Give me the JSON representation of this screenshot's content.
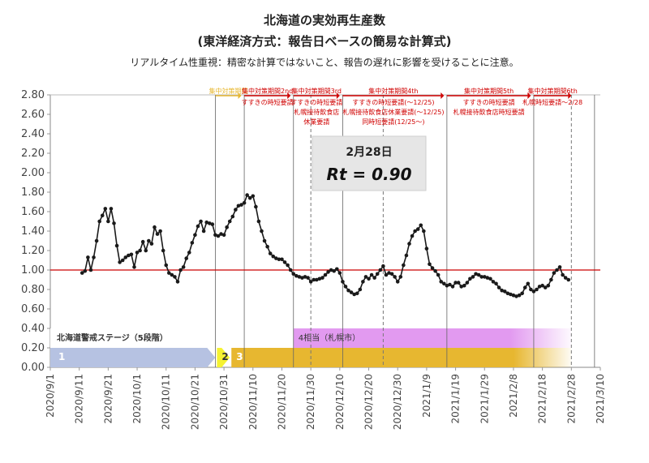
{
  "header": {
    "title": "北海道の実効再生産数",
    "subtitle": "(東洋経済方式：報告日ベースの簡易な計算式)",
    "note": "リアルタイム性重視：精密な計算ではないこと、報告の遅れに影響を受けることに注意。"
  },
  "rt_box": {
    "date": "2月28日",
    "value_text": "Rt = 0.90"
  },
  "colors": {
    "line": "#1a1a1a",
    "ref": "#cc0000",
    "stage1": "#b6c2e2",
    "stage2": "#f5f232",
    "stage3": "#e7b730",
    "stage4": "#e29af0",
    "period": "#d00000"
  },
  "stage_bar": {
    "label": "北海道警戒ステージ（5段階）",
    "stage1": "1",
    "stage2": "2",
    "stage3": "3",
    "stage4_label": "4相当（札幌市）"
  },
  "periods": [
    {
      "title": "集中対策期間",
      "start": "2020-10-28",
      "end": "2020-11-06",
      "notes": [],
      "color": "#e7b730"
    },
    {
      "title": "集中対策期間2nd",
      "start": "2020-11-07",
      "end": "2020-11-23",
      "notes": [
        "すすきの時短要請"
      ]
    },
    {
      "title": "集中対策期間3rd",
      "start": "2020-11-24",
      "end": "2020-12-10",
      "notes": [
        "すすきの時短要請",
        "札幌接待飲食店",
        "休業要請"
      ]
    },
    {
      "title": "集中対策期間4th",
      "start": "2020-12-11",
      "end": "2021-01-15",
      "notes": [
        "すすきの時短要請(〜12/25)",
        "札幌接待飲食店休業要請(〜12/25)",
        "同時短要請(12/25〜)"
      ]
    },
    {
      "title": "集中対策期間5th",
      "start": "2021-01-16",
      "end": "2021-02-14",
      "notes": [
        "すすきの時短要請",
        "札幌接待飲食店時短要請"
      ]
    },
    {
      "title": "集中対策期間6th",
      "start": "2021-02-15",
      "end": "2021-02-28",
      "notes": [
        "札幌時短要請〜2/28"
      ]
    }
  ],
  "chart_data": {
    "type": "line",
    "title": "北海道の実効再生産数",
    "xlabel": "",
    "ylabel": "",
    "ylim": [
      0,
      2.8
    ],
    "yticks": [
      "0.00",
      "0.20",
      "0.40",
      "0.60",
      "0.80",
      "1.00",
      "1.20",
      "1.40",
      "1.60",
      "1.80",
      "2.00",
      "2.20",
      "2.40",
      "2.60",
      "2.80"
    ],
    "xticks": [
      "2020/9/1",
      "2020/9/11",
      "2020/9/21",
      "2020/10/1",
      "2020/10/11",
      "2020/10/21",
      "2020/10/31",
      "2020/11/10",
      "2020/11/20",
      "2020/11/30",
      "2020/12/10",
      "2020/12/20",
      "2020/12/30",
      "2021/1/9",
      "2021/1/19",
      "2021/1/29",
      "2021/2/8",
      "2021/2/18",
      "2021/2/28",
      "2021/3/10"
    ],
    "xlim": [
      "2020-09-01",
      "2021-03-10"
    ],
    "reference_line": 1.0,
    "series": [
      {
        "values": [
          [
            "2020-09-12",
            0.97
          ],
          [
            "2020-09-13",
            0.99
          ],
          [
            "2020-09-14",
            1.13
          ],
          [
            "2020-09-15",
            1.0
          ],
          [
            "2020-09-16",
            1.13
          ],
          [
            "2020-09-17",
            1.3
          ],
          [
            "2020-09-18",
            1.5
          ],
          [
            "2020-09-19",
            1.56
          ],
          [
            "2020-09-20",
            1.63
          ],
          [
            "2020-09-21",
            1.5
          ],
          [
            "2020-09-22",
            1.63
          ],
          [
            "2020-09-23",
            1.48
          ],
          [
            "2020-09-24",
            1.25
          ],
          [
            "2020-09-25",
            1.08
          ],
          [
            "2020-09-26",
            1.1
          ],
          [
            "2020-09-27",
            1.13
          ],
          [
            "2020-09-28",
            1.15
          ],
          [
            "2020-09-29",
            1.16
          ],
          [
            "2020-09-30",
            1.03
          ],
          [
            "2020-10-01",
            1.18
          ],
          [
            "2020-10-02",
            1.2
          ],
          [
            "2020-10-03",
            1.29
          ],
          [
            "2020-10-04",
            1.2
          ],
          [
            "2020-10-05",
            1.3
          ],
          [
            "2020-10-06",
            1.27
          ],
          [
            "2020-10-07",
            1.44
          ],
          [
            "2020-10-08",
            1.37
          ],
          [
            "2020-10-09",
            1.4
          ],
          [
            "2020-10-10",
            1.2
          ],
          [
            "2020-10-11",
            1.05
          ],
          [
            "2020-10-12",
            0.97
          ],
          [
            "2020-10-13",
            0.95
          ],
          [
            "2020-10-14",
            0.93
          ],
          [
            "2020-10-15",
            0.88
          ],
          [
            "2020-10-16",
            1.0
          ],
          [
            "2020-10-17",
            1.03
          ],
          [
            "2020-10-18",
            1.12
          ],
          [
            "2020-10-19",
            1.18
          ],
          [
            "2020-10-20",
            1.28
          ],
          [
            "2020-10-21",
            1.36
          ],
          [
            "2020-10-22",
            1.45
          ],
          [
            "2020-10-23",
            1.5
          ],
          [
            "2020-10-24",
            1.4
          ],
          [
            "2020-10-25",
            1.49
          ],
          [
            "2020-10-26",
            1.48
          ],
          [
            "2020-10-27",
            1.47
          ],
          [
            "2020-10-28",
            1.36
          ],
          [
            "2020-10-29",
            1.35
          ],
          [
            "2020-10-30",
            1.37
          ],
          [
            "2020-10-31",
            1.36
          ],
          [
            "2020-11-01",
            1.44
          ],
          [
            "2020-11-02",
            1.5
          ],
          [
            "2020-11-03",
            1.55
          ],
          [
            "2020-11-04",
            1.62
          ],
          [
            "2020-11-05",
            1.66
          ],
          [
            "2020-11-06",
            1.67
          ],
          [
            "2020-11-07",
            1.69
          ],
          [
            "2020-11-08",
            1.77
          ],
          [
            "2020-11-09",
            1.74
          ],
          [
            "2020-11-10",
            1.76
          ],
          [
            "2020-11-11",
            1.65
          ],
          [
            "2020-11-12",
            1.5
          ],
          [
            "2020-11-13",
            1.4
          ],
          [
            "2020-11-14",
            1.3
          ],
          [
            "2020-11-15",
            1.24
          ],
          [
            "2020-11-16",
            1.17
          ],
          [
            "2020-11-17",
            1.14
          ],
          [
            "2020-11-18",
            1.12
          ],
          [
            "2020-11-19",
            1.11
          ],
          [
            "2020-11-20",
            1.11
          ],
          [
            "2020-11-21",
            1.08
          ],
          [
            "2020-11-22",
            1.05
          ],
          [
            "2020-11-23",
            1.0
          ],
          [
            "2020-11-24",
            0.96
          ],
          [
            "2020-11-25",
            0.94
          ],
          [
            "2020-11-26",
            0.93
          ],
          [
            "2020-11-27",
            0.92
          ],
          [
            "2020-11-28",
            0.93
          ],
          [
            "2020-11-29",
            0.92
          ],
          [
            "2020-11-30",
            0.88
          ],
          [
            "2020-12-01",
            0.9
          ],
          [
            "2020-12-02",
            0.9
          ],
          [
            "2020-12-03",
            0.91
          ],
          [
            "2020-12-04",
            0.92
          ],
          [
            "2020-12-05",
            0.95
          ],
          [
            "2020-12-06",
            0.98
          ],
          [
            "2020-12-07",
            1.0
          ],
          [
            "2020-12-08",
            0.99
          ],
          [
            "2020-12-09",
            1.01
          ],
          [
            "2020-12-10",
            0.97
          ],
          [
            "2020-12-11",
            0.88
          ],
          [
            "2020-12-12",
            0.83
          ],
          [
            "2020-12-13",
            0.79
          ],
          [
            "2020-12-14",
            0.77
          ],
          [
            "2020-12-15",
            0.75
          ],
          [
            "2020-12-16",
            0.76
          ],
          [
            "2020-12-17",
            0.8
          ],
          [
            "2020-12-18",
            0.88
          ],
          [
            "2020-12-19",
            0.93
          ],
          [
            "2020-12-20",
            0.91
          ],
          [
            "2020-12-21",
            0.95
          ],
          [
            "2020-12-22",
            0.92
          ],
          [
            "2020-12-23",
            0.96
          ],
          [
            "2020-12-24",
            1.0
          ],
          [
            "2020-12-25",
            1.04
          ],
          [
            "2020-12-26",
            0.95
          ],
          [
            "2020-12-27",
            0.97
          ],
          [
            "2020-12-28",
            0.96
          ],
          [
            "2020-12-29",
            0.93
          ],
          [
            "2020-12-30",
            0.88
          ],
          [
            "2020-12-31",
            0.93
          ],
          [
            "2021-01-01",
            1.05
          ],
          [
            "2021-01-02",
            1.15
          ],
          [
            "2021-01-03",
            1.27
          ],
          [
            "2021-01-04",
            1.35
          ],
          [
            "2021-01-05",
            1.4
          ],
          [
            "2021-01-06",
            1.42
          ],
          [
            "2021-01-07",
            1.46
          ],
          [
            "2021-01-08",
            1.4
          ],
          [
            "2021-01-09",
            1.22
          ],
          [
            "2021-01-10",
            1.06
          ],
          [
            "2021-01-11",
            1.02
          ],
          [
            "2021-01-12",
            0.99
          ],
          [
            "2021-01-13",
            0.95
          ],
          [
            "2021-01-14",
            0.88
          ],
          [
            "2021-01-15",
            0.86
          ],
          [
            "2021-01-16",
            0.84
          ],
          [
            "2021-01-17",
            0.85
          ],
          [
            "2021-01-18",
            0.83
          ],
          [
            "2021-01-19",
            0.87
          ],
          [
            "2021-01-20",
            0.87
          ],
          [
            "2021-01-21",
            0.83
          ],
          [
            "2021-01-22",
            0.84
          ],
          [
            "2021-01-23",
            0.87
          ],
          [
            "2021-01-24",
            0.91
          ],
          [
            "2021-01-25",
            0.93
          ],
          [
            "2021-01-26",
            0.96
          ],
          [
            "2021-01-27",
            0.95
          ],
          [
            "2021-01-28",
            0.93
          ],
          [
            "2021-01-29",
            0.93
          ],
          [
            "2021-01-30",
            0.92
          ],
          [
            "2021-01-31",
            0.91
          ],
          [
            "2021-02-01",
            0.88
          ],
          [
            "2021-02-02",
            0.86
          ],
          [
            "2021-02-03",
            0.82
          ],
          [
            "2021-02-04",
            0.79
          ],
          [
            "2021-02-05",
            0.78
          ],
          [
            "2021-02-06",
            0.76
          ],
          [
            "2021-02-07",
            0.75
          ],
          [
            "2021-02-08",
            0.74
          ],
          [
            "2021-02-09",
            0.73
          ],
          [
            "2021-02-10",
            0.74
          ],
          [
            "2021-02-11",
            0.76
          ],
          [
            "2021-02-12",
            0.82
          ],
          [
            "2021-02-13",
            0.86
          ],
          [
            "2021-02-14",
            0.8
          ],
          [
            "2021-02-15",
            0.78
          ],
          [
            "2021-02-16",
            0.8
          ],
          [
            "2021-02-17",
            0.83
          ],
          [
            "2021-02-18",
            0.84
          ],
          [
            "2021-02-19",
            0.82
          ],
          [
            "2021-02-20",
            0.84
          ],
          [
            "2021-02-21",
            0.9
          ],
          [
            "2021-02-22",
            0.97
          ],
          [
            "2021-02-23",
            1.0
          ],
          [
            "2021-02-24",
            1.03
          ],
          [
            "2021-02-25",
            0.95
          ],
          [
            "2021-02-26",
            0.92
          ],
          [
            "2021-02-27",
            0.9
          ]
        ]
      }
    ],
    "grid": false
  }
}
